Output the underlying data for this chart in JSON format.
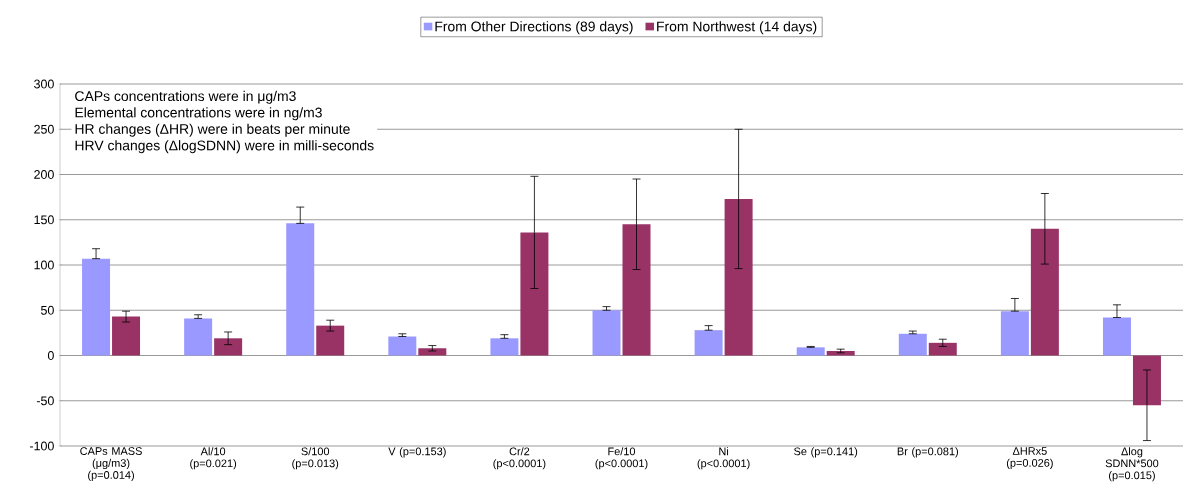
{
  "chart_data": {
    "type": "bar",
    "categories": [
      "CAPs MASS (μg/m3) (p=0.014)",
      "Al/10 (p=0.021)",
      "S/100 (p=0.013)",
      "V (p=0.153)",
      "Cr/2 (p<0.0001)",
      "Fe/10 (p<0.0001)",
      "Ni (p<0.0001)",
      "Se (p=0.141)",
      "Br (p=0.081)",
      "ΔHRx5 (p=0.026)",
      "Δlog SDNN*500 (p=0.015)"
    ],
    "series": [
      {
        "name": "From Other Directions (89 days)",
        "color": "#9999ff",
        "values": [
          107,
          41,
          146,
          21,
          19,
          50,
          28,
          9,
          24,
          49,
          42
        ],
        "errors": [
          [
            107,
            118
          ],
          [
            41,
            45
          ],
          [
            146,
            164
          ],
          [
            21,
            24
          ],
          [
            19,
            23
          ],
          [
            50,
            54
          ],
          [
            28,
            33
          ],
          [
            9,
            10
          ],
          [
            24,
            27
          ],
          [
            49,
            63
          ],
          [
            42,
            56
          ]
        ]
      },
      {
        "name": "From Northwest (14 days)",
        "color": "#993366",
        "values": [
          43,
          19,
          33,
          8,
          136,
          145,
          173,
          5,
          14,
          140,
          -55
        ],
        "errors": [
          6,
          7,
          6,
          3,
          62,
          50,
          77,
          2,
          4,
          39,
          39
        ]
      }
    ],
    "ylim": [
      -100,
      300
    ],
    "yticks": [
      -100,
      -50,
      0,
      50,
      100,
      150,
      200,
      250,
      300
    ],
    "grid": "y",
    "legend": "top",
    "annotations": [
      "CAPs concentrations were in μg/m3",
      "Elemental concentrations were in ng/m3",
      "HR changes (ΔHR) were in beats per minute",
      "HRV changes (ΔlogSDNN) were in milli-seconds"
    ]
  }
}
